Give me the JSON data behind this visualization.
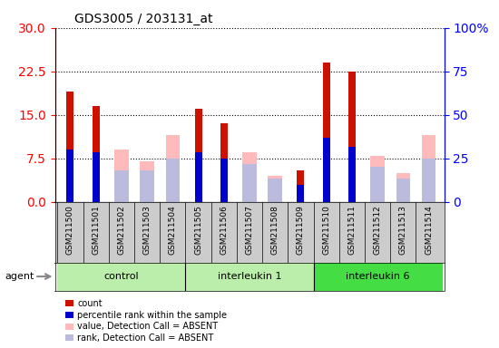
{
  "title": "GDS3005 / 203131_at",
  "samples": [
    "GSM211500",
    "GSM211501",
    "GSM211502",
    "GSM211503",
    "GSM211504",
    "GSM211505",
    "GSM211506",
    "GSM211507",
    "GSM211508",
    "GSM211509",
    "GSM211510",
    "GSM211511",
    "GSM211512",
    "GSM211513",
    "GSM211514"
  ],
  "groups": [
    {
      "label": "control",
      "start": 0,
      "end": 5,
      "color": "#bbeeaa"
    },
    {
      "label": "interleukin 1",
      "start": 5,
      "end": 10,
      "color": "#bbeeaa"
    },
    {
      "label": "interleukin 6",
      "start": 10,
      "end": 15,
      "color": "#44dd44"
    }
  ],
  "count": [
    19.0,
    16.5,
    0,
    0,
    0,
    16.0,
    13.5,
    0,
    0,
    5.5,
    24.0,
    22.5,
    0,
    0,
    0
  ],
  "percentile_rank": [
    9.0,
    8.5,
    0,
    0,
    0,
    8.5,
    7.5,
    0,
    0,
    3.0,
    11.0,
    9.5,
    0,
    0,
    0
  ],
  "value_absent": [
    0,
    0,
    9.0,
    7.0,
    11.5,
    0,
    0,
    8.5,
    4.5,
    0,
    0,
    0,
    8.0,
    5.0,
    11.5
  ],
  "rank_absent": [
    0,
    0,
    5.5,
    5.5,
    7.5,
    0,
    0,
    6.5,
    4.0,
    0,
    0,
    0,
    6.0,
    4.0,
    7.5
  ],
  "ylim_left": [
    0,
    30
  ],
  "ylim_right": [
    0,
    100
  ],
  "yticks_left": [
    0,
    7.5,
    15,
    22.5,
    30
  ],
  "yticks_right": [
    0,
    25,
    50,
    75,
    100
  ],
  "color_count": "#cc1100",
  "color_rank": "#0000cc",
  "color_value_absent": "#ffbbbb",
  "color_rank_absent": "#bbbbdd",
  "bar_width": 0.55,
  "narrow_bar_width": 0.28
}
